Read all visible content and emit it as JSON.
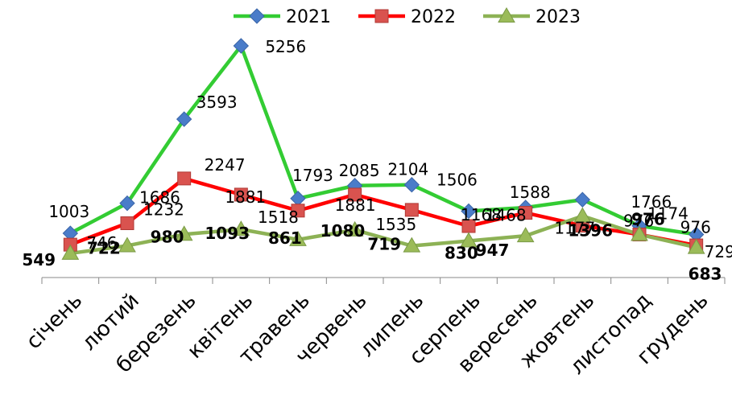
{
  "chart_data": {
    "type": "line",
    "categories": [
      "січень",
      "лютий",
      "березень",
      "квітень",
      "травень",
      "червень",
      "липень",
      "серпень",
      "вересень",
      "жовтень",
      "листопад",
      "грудень"
    ],
    "series": [
      {
        "name": "2021",
        "values": [
          1003,
          1686,
          3593,
          5256,
          1793,
          2085,
          2104,
          1506,
          1588,
          1766,
          1174,
          976
        ],
        "color": "#33cc33",
        "marker": "diamond",
        "marker_color": "#4a7cc9"
      },
      {
        "name": "2022",
        "values": [
          746,
          1232,
          2247,
          1881,
          1518,
          1881,
          1535,
          1168,
          1468,
          1177,
          976,
          729
        ],
        "color": "#ff0000",
        "marker": "square",
        "marker_color": "#d9534f"
      },
      {
        "name": "2023",
        "values": [
          549,
          722,
          980,
          1093,
          861,
          1080,
          719,
          830,
          947,
          1396,
          976,
          683
        ],
        "color": "#8db255",
        "marker": "triangle",
        "marker_color": "#9bbb59"
      }
    ],
    "data_labels": [
      [
        "1003",
        "1686",
        "3593",
        "5256",
        "1793",
        "2085",
        "2104",
        "1506",
        "1588",
        "1766",
        "1174",
        "976"
      ],
      [
        "746",
        "1232",
        "2247",
        "1881",
        "1518",
        "1881",
        "1535",
        "1168",
        "1468",
        "1177",
        "976",
        "729"
      ],
      [
        "549",
        "722",
        "980",
        "1093",
        "861",
        "1080",
        "719",
        "830",
        "947",
        "1396",
        "976",
        "683"
      ]
    ],
    "legend_position": "top",
    "grid": false
  }
}
